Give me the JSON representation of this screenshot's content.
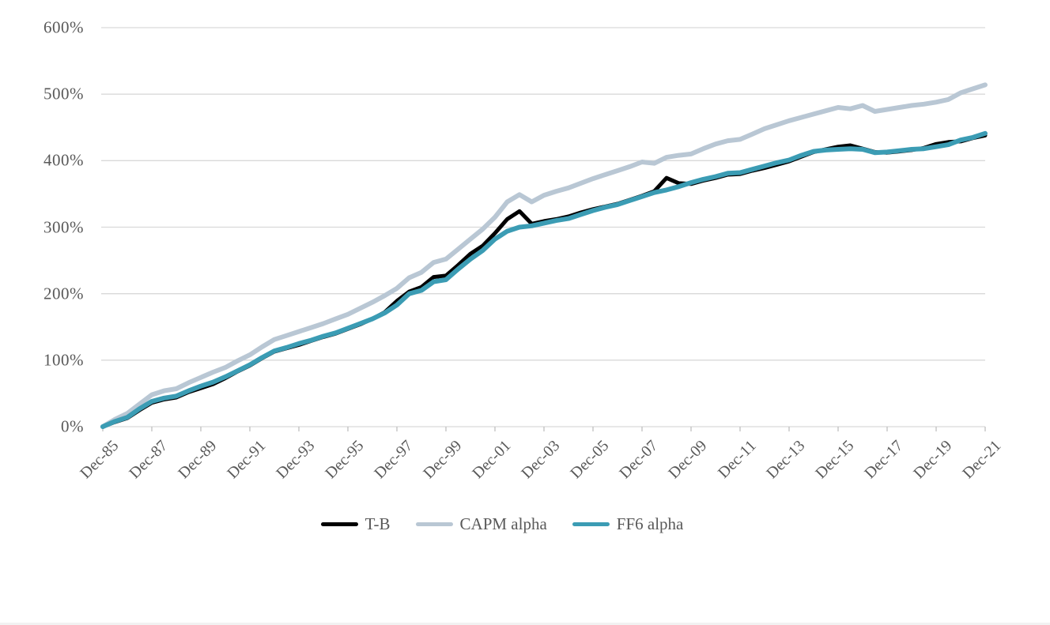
{
  "chart_data": {
    "type": "line",
    "title": "",
    "xlabel": "",
    "ylabel": "",
    "grid": "horizontal",
    "legend_position": "bottom-center",
    "y_axis": {
      "tick_labels": [
        "0%",
        "100%",
        "200%",
        "300%",
        "400%",
        "500%",
        "600%"
      ],
      "tick_values": [
        0,
        100,
        200,
        300,
        400,
        500,
        600
      ],
      "min": 0,
      "max": 600
    },
    "x_axis": {
      "tick_labels": [
        "Dec-85",
        "Dec-87",
        "Dec-89",
        "Dec-91",
        "Dec-93",
        "Dec-95",
        "Dec-97",
        "Dec-99",
        "Dec-01",
        "Dec-03",
        "Dec-05",
        "Dec-07",
        "Dec-09",
        "Dec-11",
        "Dec-13",
        "Dec-15",
        "Dec-17",
        "Dec-19",
        "Dec-21"
      ],
      "tick_interval_years": 2,
      "start": "Dec-85",
      "end": "Dec-21",
      "span_years": 36
    },
    "t_years_since_start": [
      0,
      0.5,
      1,
      1.5,
      2,
      2.5,
      3,
      3.5,
      4,
      4.5,
      5,
      5.5,
      6,
      6.5,
      7,
      7.5,
      8,
      8.5,
      9,
      9.5,
      10,
      10.5,
      11,
      11.5,
      12,
      12.5,
      13,
      13.5,
      14,
      14.5,
      15,
      15.5,
      16,
      16.5,
      17,
      17.5,
      18,
      18.5,
      19,
      19.5,
      20,
      20.5,
      21,
      21.5,
      22,
      22.5,
      23,
      23.5,
      24,
      24.5,
      25,
      25.5,
      26,
      26.5,
      27,
      27.5,
      28,
      28.5,
      29,
      29.5,
      30,
      30.5,
      31,
      31.5,
      32,
      32.5,
      33,
      33.5,
      34,
      34.5,
      35,
      35.5,
      36
    ],
    "series": [
      {
        "name": "T-B",
        "color": "#000000",
        "stroke_width": 5,
        "values_pct": [
          0,
          7,
          13,
          25,
          36,
          41,
          44,
          52,
          58,
          64,
          73,
          83,
          92,
          103,
          113,
          118,
          123,
          129,
          135,
          140,
          147,
          154,
          162,
          172,
          189,
          203,
          210,
          225,
          227,
          243,
          260,
          272,
          291,
          312,
          324,
          305,
          309,
          312,
          316,
          322,
          327,
          331,
          335,
          341,
          347,
          354,
          374,
          366,
          365,
          370,
          374,
          379,
          380,
          385,
          389,
          394,
          399,
          406,
          413,
          417,
          421,
          423,
          418,
          413,
          412,
          414,
          416,
          419,
          425,
          428,
          429,
          434,
          438
        ]
      },
      {
        "name": "CAPM alpha",
        "color": "#b9c7d4",
        "stroke_width": 6,
        "values_pct": [
          0,
          11,
          20,
          34,
          48,
          54,
          57,
          66,
          74,
          82,
          89,
          99,
          108,
          120,
          131,
          137,
          143,
          149,
          155,
          162,
          169,
          178,
          187,
          197,
          208,
          224,
          232,
          247,
          252,
          267,
          282,
          297,
          315,
          338,
          349,
          338,
          348,
          354,
          359,
          366,
          373,
          379,
          385,
          391,
          398,
          396,
          405,
          408,
          410,
          418,
          425,
          430,
          432,
          440,
          448,
          454,
          460,
          465,
          470,
          475,
          480,
          478,
          483,
          474,
          477,
          480,
          483,
          485,
          488,
          492,
          502,
          508,
          514
        ]
      },
      {
        "name": "FF6 alpha",
        "color": "#3b9cb4",
        "stroke_width": 6,
        "values_pct": [
          0,
          8,
          14,
          27,
          38,
          43,
          46,
          54,
          61,
          67,
          75,
          84,
          93,
          104,
          114,
          119,
          125,
          130,
          136,
          141,
          148,
          155,
          162,
          171,
          183,
          200,
          205,
          218,
          221,
          237,
          252,
          265,
          282,
          294,
          300,
          302,
          306,
          310,
          313,
          319,
          325,
          330,
          334,
          340,
          346,
          352,
          356,
          361,
          367,
          372,
          376,
          381,
          382,
          387,
          392,
          397,
          401,
          408,
          414,
          416,
          417,
          418,
          417,
          412,
          413,
          415,
          417,
          418,
          421,
          424,
          431,
          435,
          441
        ]
      }
    ],
    "end_values_pct": {
      "T-B": 438,
      "CAPM alpha": 514,
      "FF6 alpha": 441
    }
  },
  "colors": {
    "background": "#ffffff",
    "gridline": "#d9d9d9",
    "axis_tick": "#bfbfbf",
    "label_text": "#595959",
    "series_tb": "#000000",
    "series_capm": "#b9c7d4",
    "series_ff6": "#3b9cb4"
  }
}
